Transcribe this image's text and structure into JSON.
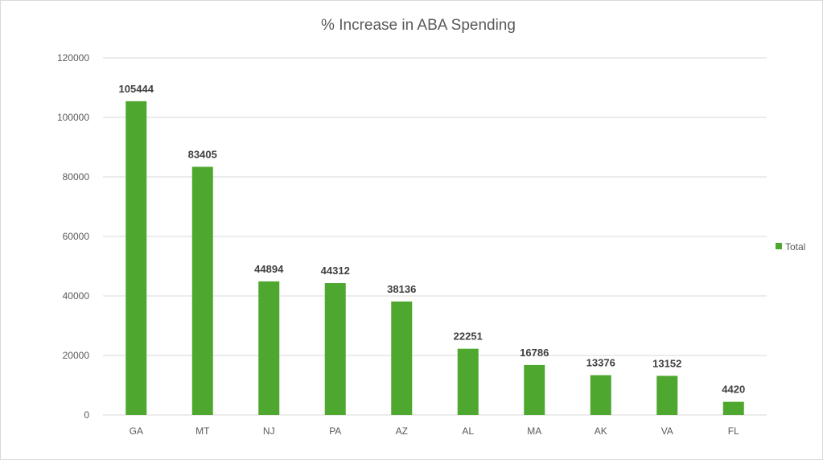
{
  "chart_data": {
    "type": "bar",
    "title": "% Increase in ABA Spending",
    "xlabel": "",
    "ylabel": "",
    "categories": [
      "GA",
      "MT",
      "NJ",
      "PA",
      "AZ",
      "AL",
      "MA",
      "AK",
      "VA",
      "FL"
    ],
    "series": [
      {
        "name": "Total",
        "values": [
          105444,
          83405,
          44894,
          44312,
          38136,
          22251,
          16786,
          13376,
          13152,
          4420
        ],
        "color": "#4ea72e"
      }
    ],
    "ylim": [
      0,
      120000
    ],
    "yticks": [
      0,
      20000,
      40000,
      60000,
      80000,
      100000,
      120000
    ],
    "grid": true,
    "legend": "right",
    "data_labels": true
  }
}
